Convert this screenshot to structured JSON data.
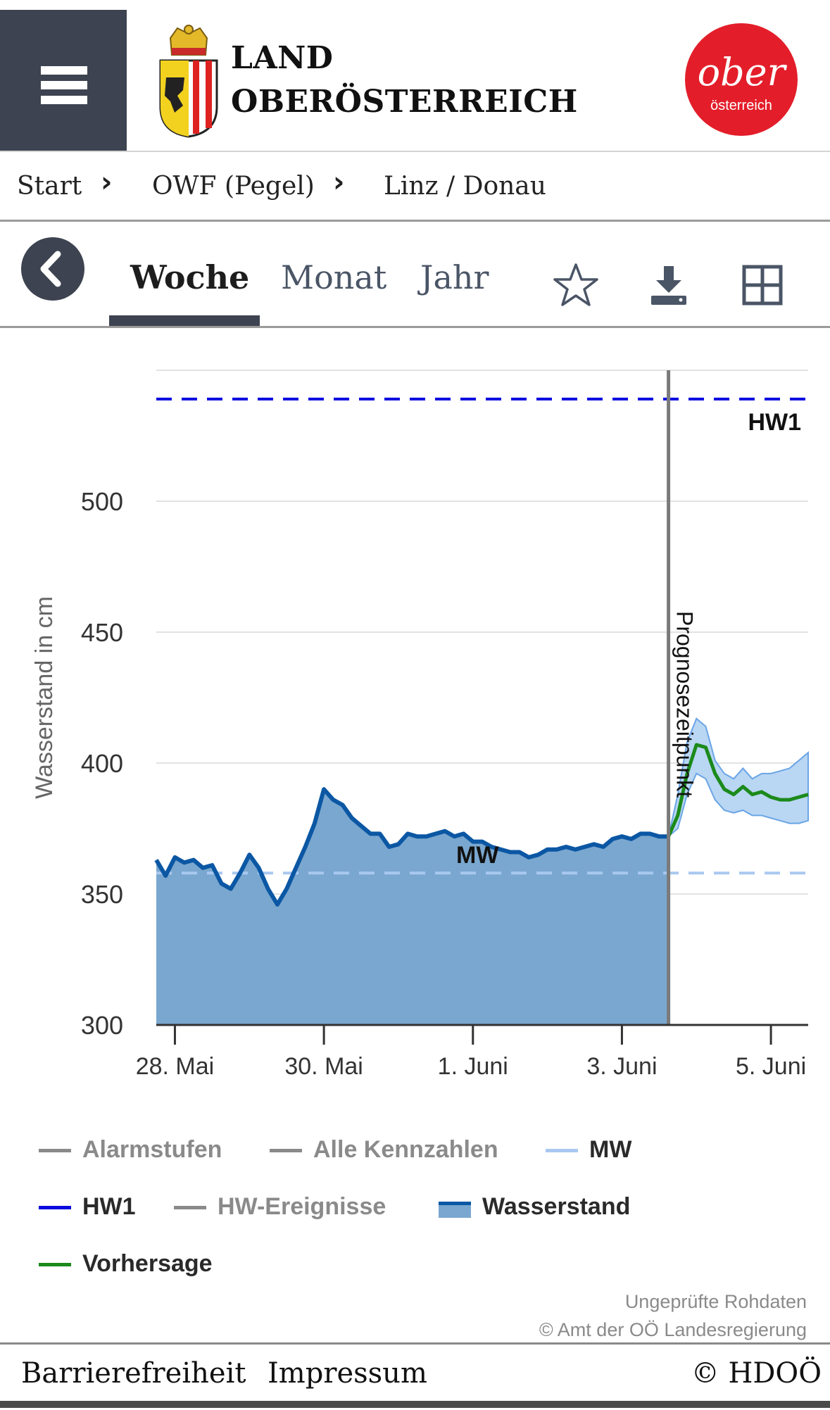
{
  "header": {
    "logo_line1": "LAND",
    "logo_line2": "OBERÖSTERREICH",
    "brand_top": "ober",
    "brand_bottom": "österreich",
    "colors": {
      "menu_bg": "#3d4350",
      "brand_red": "#e31e2a"
    }
  },
  "breadcrumb": {
    "items": [
      "Start",
      "OWF (Pegel)",
      "Linz / Donau"
    ]
  },
  "tabs": {
    "items": [
      "Woche",
      "Monat",
      "Jahr"
    ],
    "active": "Woche",
    "icons": [
      "star-icon",
      "download-icon",
      "grid-icon"
    ]
  },
  "chart_data": {
    "type": "area",
    "ylabel": "Wasserstand in cm",
    "ylim": [
      300,
      550
    ],
    "yticks": [
      300,
      350,
      400,
      450,
      500
    ],
    "x_range": [
      "2023-05-27T18:00",
      "2023-06-05T12:00"
    ],
    "xticks": [
      {
        "label": "28. Mai",
        "x": "2023-05-28"
      },
      {
        "label": "30. Mai",
        "x": "2023-05-30"
      },
      {
        "label": "1. Juni",
        "x": "2023-06-01"
      },
      {
        "label": "3. Juni",
        "x": "2023-06-03"
      },
      {
        "label": "5. Juni",
        "x": "2023-06-05"
      }
    ],
    "forecast_point": {
      "x": "2023-06-03T15:00",
      "label": "Prognosezeitpunkt"
    },
    "reference_lines": [
      {
        "name": "HW1",
        "value": 539,
        "color": "#0a0adf",
        "style": "dashed"
      },
      {
        "name": "MW",
        "value": 358,
        "color": "#a9c8f0",
        "style": "dashed"
      }
    ],
    "series": [
      {
        "name": "Wasserstand",
        "color": "#0b57a4",
        "fill": "#7aa7cf",
        "points": [
          [
            "2023-05-27T18:00",
            363
          ],
          [
            "2023-05-27T21:00",
            357
          ],
          [
            "2023-05-28T00:00",
            364
          ],
          [
            "2023-05-28T03:00",
            362
          ],
          [
            "2023-05-28T06:00",
            363
          ],
          [
            "2023-05-28T09:00",
            360
          ],
          [
            "2023-05-28T12:00",
            361
          ],
          [
            "2023-05-28T15:00",
            354
          ],
          [
            "2023-05-28T18:00",
            352
          ],
          [
            "2023-05-28T21:00",
            358
          ],
          [
            "2023-05-29T00:00",
            365
          ],
          [
            "2023-05-29T03:00",
            360
          ],
          [
            "2023-05-29T06:00",
            352
          ],
          [
            "2023-05-29T09:00",
            346
          ],
          [
            "2023-05-29T12:00",
            352
          ],
          [
            "2023-05-29T15:00",
            360
          ],
          [
            "2023-05-29T18:00",
            368
          ],
          [
            "2023-05-29T21:00",
            377
          ],
          [
            "2023-05-30T00:00",
            390
          ],
          [
            "2023-05-30T03:00",
            386
          ],
          [
            "2023-05-30T06:00",
            384
          ],
          [
            "2023-05-30T09:00",
            379
          ],
          [
            "2023-05-30T12:00",
            376
          ],
          [
            "2023-05-30T15:00",
            373
          ],
          [
            "2023-05-30T18:00",
            373
          ],
          [
            "2023-05-30T21:00",
            368
          ],
          [
            "2023-05-31T00:00",
            369
          ],
          [
            "2023-05-31T03:00",
            373
          ],
          [
            "2023-05-31T06:00",
            372
          ],
          [
            "2023-05-31T09:00",
            372
          ],
          [
            "2023-05-31T12:00",
            373
          ],
          [
            "2023-05-31T15:00",
            374
          ],
          [
            "2023-05-31T18:00",
            372
          ],
          [
            "2023-05-31T21:00",
            373
          ],
          [
            "2023-06-01T00:00",
            370
          ],
          [
            "2023-06-01T03:00",
            370
          ],
          [
            "2023-06-01T06:00",
            368
          ],
          [
            "2023-06-01T09:00",
            367
          ],
          [
            "2023-06-01T12:00",
            366
          ],
          [
            "2023-06-01T15:00",
            366
          ],
          [
            "2023-06-01T18:00",
            364
          ],
          [
            "2023-06-01T21:00",
            365
          ],
          [
            "2023-06-02T00:00",
            367
          ],
          [
            "2023-06-02T03:00",
            367
          ],
          [
            "2023-06-02T06:00",
            368
          ],
          [
            "2023-06-02T09:00",
            367
          ],
          [
            "2023-06-02T12:00",
            368
          ],
          [
            "2023-06-02T15:00",
            369
          ],
          [
            "2023-06-02T18:00",
            368
          ],
          [
            "2023-06-02T21:00",
            371
          ],
          [
            "2023-06-03T00:00",
            372
          ],
          [
            "2023-06-03T03:00",
            371
          ],
          [
            "2023-06-03T06:00",
            373
          ],
          [
            "2023-06-03T09:00",
            373
          ],
          [
            "2023-06-03T12:00",
            372
          ],
          [
            "2023-06-03T15:00",
            372
          ]
        ]
      },
      {
        "name": "Vorhersage",
        "color": "#1b8a1b",
        "points": [
          [
            "2023-06-03T15:00",
            372
          ],
          [
            "2023-06-03T18:00",
            380
          ],
          [
            "2023-06-03T21:00",
            396
          ],
          [
            "2023-06-04T00:00",
            407
          ],
          [
            "2023-06-04T03:00",
            406
          ],
          [
            "2023-06-04T06:00",
            396
          ],
          [
            "2023-06-04T09:00",
            390
          ],
          [
            "2023-06-04T12:00",
            388
          ],
          [
            "2023-06-04T15:00",
            391
          ],
          [
            "2023-06-04T18:00",
            388
          ],
          [
            "2023-06-04T21:00",
            389
          ],
          [
            "2023-06-05T00:00",
            387
          ],
          [
            "2023-06-05T03:00",
            386
          ],
          [
            "2023-06-05T06:00",
            386
          ],
          [
            "2023-06-05T09:00",
            387
          ],
          [
            "2023-06-05T12:00",
            388
          ]
        ],
        "band_upper": [
          372,
          388,
          408,
          417,
          414,
          401,
          396,
          394,
          398,
          394,
          396,
          396,
          397,
          398,
          401,
          404
        ],
        "band_lower": [
          372,
          375,
          388,
          396,
          394,
          386,
          382,
          381,
          382,
          380,
          380,
          379,
          378,
          377,
          377,
          378
        ]
      }
    ],
    "annotations": [
      "HW1",
      "MW",
      "Prognosezeitpunkt"
    ]
  },
  "legend": [
    {
      "label": "Alarmstufen",
      "color": "#8a8a8a",
      "muted": true
    },
    {
      "label": "Alle Kennzahlen",
      "color": "#8a8a8a",
      "muted": true
    },
    {
      "label": "MW",
      "color": "#a9c8f0",
      "muted": false
    },
    {
      "label": "HW1",
      "color": "#0a0adf",
      "muted": false
    },
    {
      "label": "HW-Ereignisse",
      "color": "#8a8a8a",
      "muted": true
    },
    {
      "label": "Wasserstand",
      "color": "#0b57a4",
      "muted": false
    },
    {
      "label": "Vorhersage",
      "color": "#1b8a1b",
      "muted": false
    }
  ],
  "notes": {
    "line1": "Ungeprüfte Rohdaten",
    "line2": "© Amt der OÖ Landesregierung"
  },
  "footer": {
    "left_1": "Barrierefreiheit",
    "left_2": "Impressum",
    "right": "© HDOÖ"
  }
}
